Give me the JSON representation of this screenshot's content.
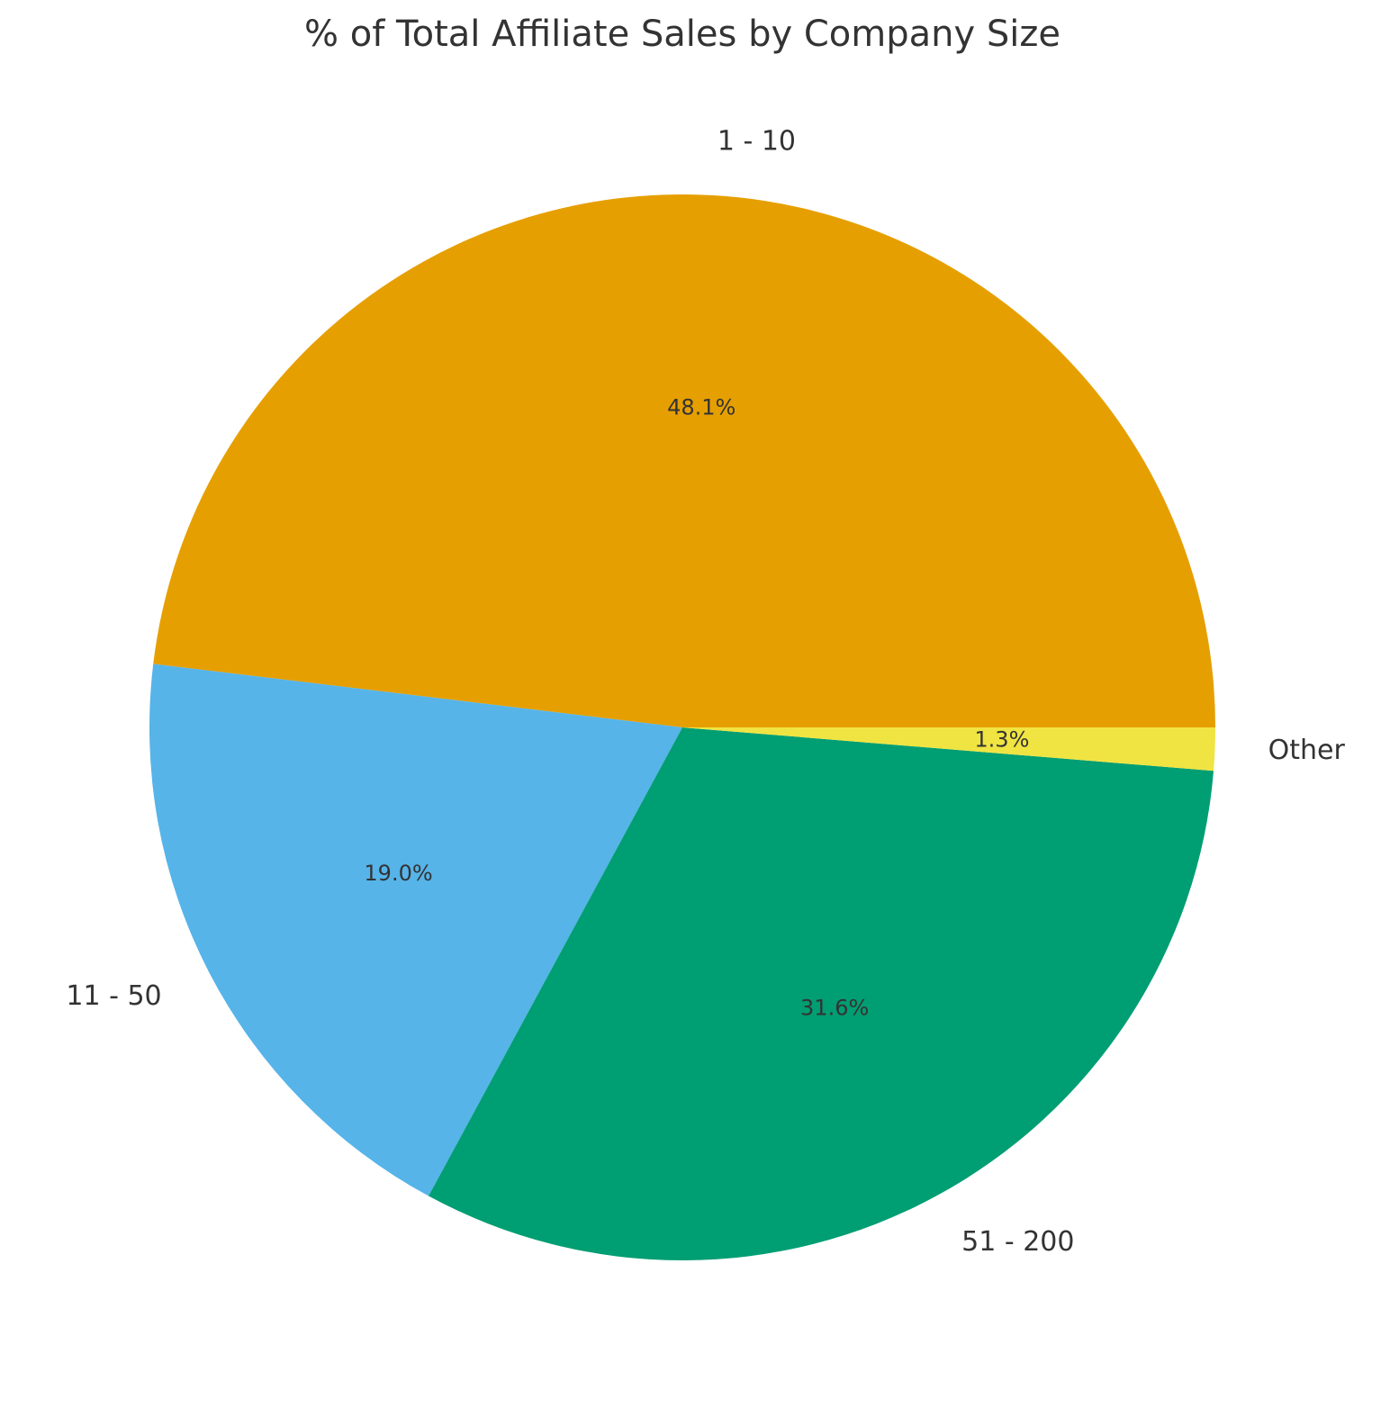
{
  "chart_data": {
    "type": "pie",
    "title": "% of Total Affiliate Sales by Company Size",
    "categories": [
      "1 - 10",
      "11 - 50",
      "51 - 200",
      "Other"
    ],
    "values": [
      48.1,
      19.0,
      31.6,
      1.3
    ],
    "value_labels": [
      "48.1%",
      "19.0%",
      "31.6%",
      "1.3%"
    ],
    "colors": [
      "#E69F00",
      "#56B4E9",
      "#009E73",
      "#F0E442"
    ]
  }
}
